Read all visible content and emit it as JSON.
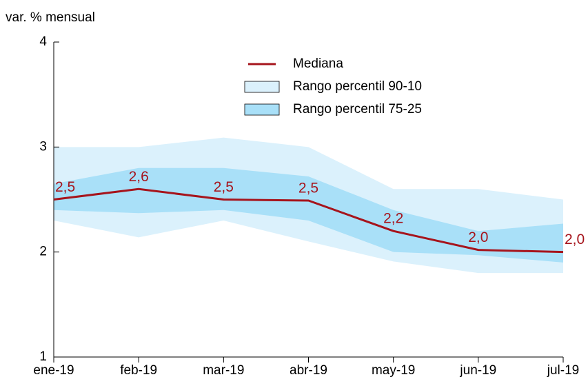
{
  "chart_data": {
    "type": "line",
    "y_label": "var. % mensual",
    "categories": [
      "ene-19",
      "feb-19",
      "mar-19",
      "abr-19",
      "may-19",
      "jun-19",
      "jul-19"
    ],
    "ylim": [
      1,
      4
    ],
    "yticks": [
      1,
      2,
      3,
      4
    ],
    "bands": [
      {
        "name": "Rango percentil 90-10",
        "color": "#dbf1fc",
        "upper": [
          3.0,
          3.0,
          3.09,
          3.0,
          2.6,
          2.6,
          2.5
        ],
        "lower": [
          2.3,
          2.14,
          2.3,
          2.1,
          1.91,
          1.8,
          1.8
        ]
      },
      {
        "name": "Rango percentil 75-25",
        "color": "#a9e0f8",
        "upper": [
          2.65,
          2.8,
          2.8,
          2.72,
          2.4,
          2.2,
          2.27
        ],
        "lower": [
          2.4,
          2.37,
          2.4,
          2.3,
          2.0,
          1.97,
          1.9
        ]
      }
    ],
    "series": [
      {
        "name": "Mediana",
        "color": "#a6141c",
        "values": [
          2.5,
          2.6,
          2.5,
          2.49,
          2.2,
          2.02,
          2.0
        ],
        "value_labels": [
          "2,5",
          "2,6",
          "2,5",
          "2,5",
          "2,2",
          "2,0",
          "2,0"
        ]
      }
    ]
  }
}
